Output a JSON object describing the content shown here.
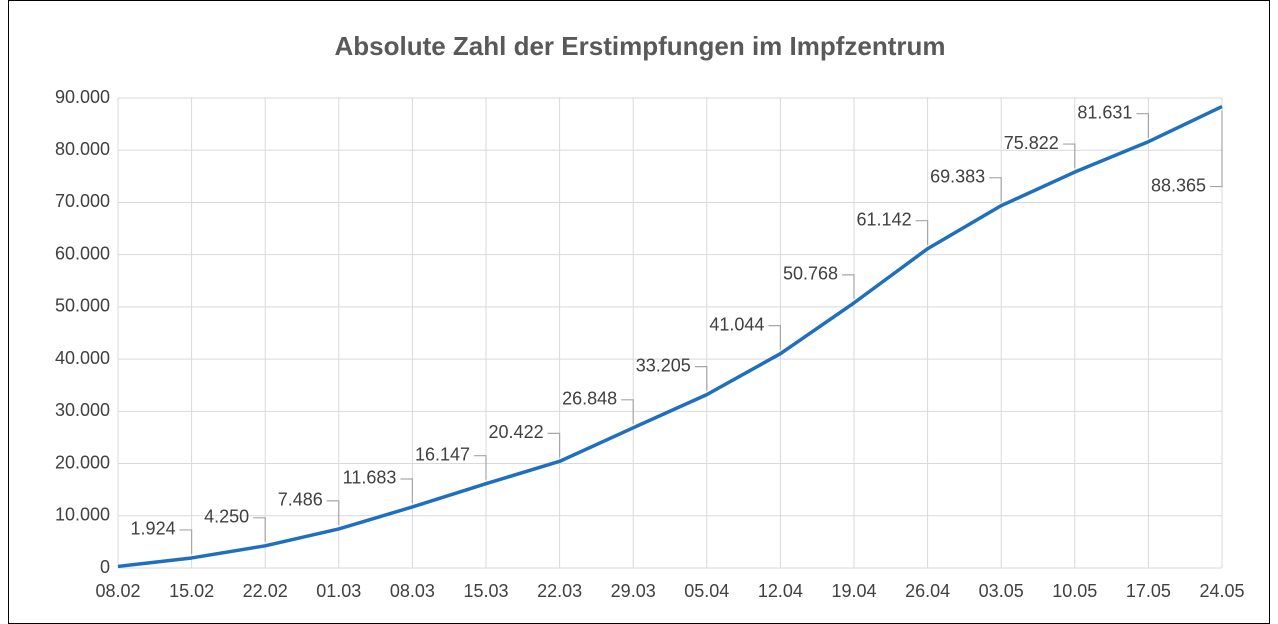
{
  "chart_data": {
    "type": "line",
    "title": "Absolute Zahl der Erstimpfungen im Impfzentrum",
    "categories": [
      "08.02",
      "15.02",
      "22.02",
      "01.03",
      "08.03",
      "15.03",
      "22.03",
      "29.03",
      "05.04",
      "12.04",
      "19.04",
      "26.04",
      "03.05",
      "10.05",
      "17.05",
      "24.05"
    ],
    "values": [
      300,
      1924,
      4250,
      7486,
      11683,
      16147,
      20422,
      26848,
      33205,
      41044,
      50768,
      61142,
      69383,
      75822,
      81631,
      88365
    ],
    "value_labels": [
      null,
      "1.924",
      "4.250",
      "7.486",
      "11.683",
      "16.147",
      "20.422",
      "26.848",
      "33.205",
      "41.044",
      "50.768",
      "61.142",
      "69.383",
      "75.822",
      "81.631",
      "88.365"
    ],
    "color": "#1f6fbf",
    "ylim": [
      0,
      90000
    ],
    "yticks": [
      0,
      {
        "value": 10000,
        "label": "10.000"
      },
      {
        "value": 20000,
        "label": "20.000"
      },
      {
        "value": 30000,
        "label": "30.000"
      },
      {
        "value": 40000,
        "label": "40.000"
      },
      {
        "value": 50000,
        "label": "50.000"
      },
      {
        "value": 60000,
        "label": "60.000"
      },
      {
        "value": 70000,
        "label": "70.000"
      },
      {
        "value": 80000,
        "label": "80.000"
      },
      {
        "value": 90000,
        "label": "90.000"
      }
    ],
    "grid": true
  }
}
